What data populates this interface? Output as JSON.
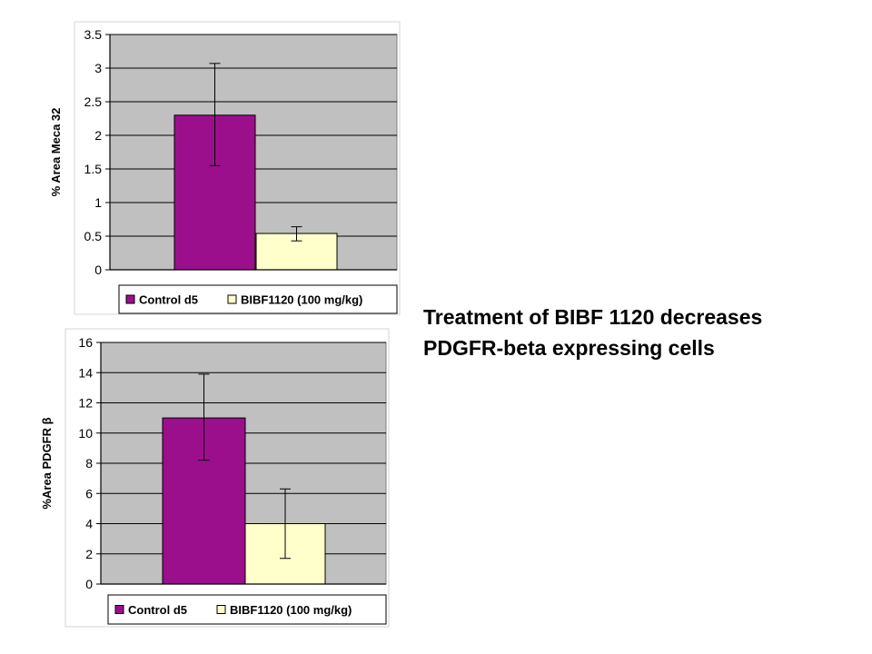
{
  "caption": {
    "line1": "Treatment of BIBF 1120 decreases",
    "line2": "PDGFR-beta expressing cells"
  },
  "colors": {
    "control": "#9c0f8c",
    "treated": "#ffffcc",
    "plot_bg": "#c0c0c0"
  },
  "chart_data": [
    {
      "type": "bar",
      "title": "",
      "ylabel": "% Area Meca 32",
      "xlabel": "",
      "ylim": [
        0,
        3.5
      ],
      "yticks": [
        "0",
        "0.5",
        "1",
        "1.5",
        "2",
        "2.5",
        "3",
        "3.5"
      ],
      "grid": true,
      "legend_position": "bottom",
      "series": [
        {
          "name": "Control d5",
          "value": 2.3,
          "error": [
            1.55,
            3.07
          ],
          "color": "#9c0f8c"
        },
        {
          "name": "BIBF1120 (100 mg/kg)",
          "value": 0.54,
          "error": [
            0.43,
            0.64
          ],
          "color": "#ffffcc"
        }
      ]
    },
    {
      "type": "bar",
      "title": "",
      "ylabel": "%Area PDGFR β",
      "xlabel": "",
      "ylim": [
        0,
        16
      ],
      "yticks": [
        "0",
        "2",
        "4",
        "6",
        "8",
        "10",
        "12",
        "14",
        "16"
      ],
      "grid": true,
      "legend_position": "bottom",
      "series": [
        {
          "name": "Control d5",
          "value": 11.0,
          "error": [
            8.2,
            13.9
          ],
          "color": "#9c0f8c"
        },
        {
          "name": "BIBF1120 (100 mg/kg)",
          "value": 4.0,
          "error": [
            1.7,
            6.3
          ],
          "color": "#ffffcc"
        }
      ]
    }
  ]
}
